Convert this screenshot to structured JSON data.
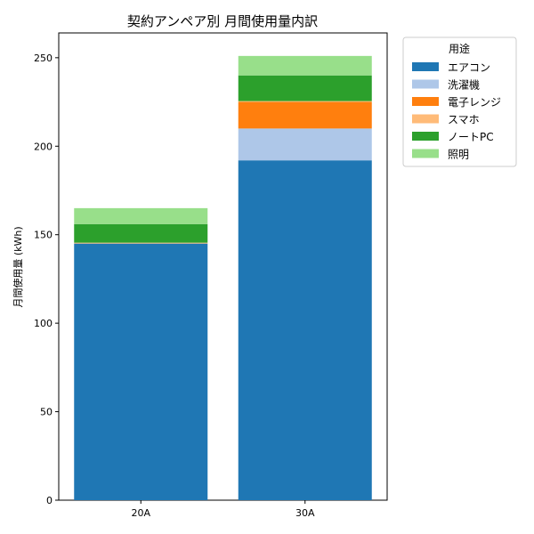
{
  "chart_data": {
    "type": "bar",
    "stacked": true,
    "title": "契約アンペア別 月間使用量内訳",
    "xlabel": "",
    "ylabel": "月間使用量 (kWh)",
    "categories": [
      "20A",
      "30A"
    ],
    "ylim": [
      0,
      264
    ],
    "yticks": [
      0,
      50,
      100,
      150,
      200,
      250
    ],
    "legend_title": "用途",
    "legend_position": "outside-top-right",
    "grid": false,
    "series": [
      {
        "name": "エアコン",
        "color": "#1f77b4",
        "values": [
          145,
          192
        ]
      },
      {
        "name": "洗濯機",
        "color": "#aec7e8",
        "values": [
          0,
          18
        ]
      },
      {
        "name": "電子レンジ",
        "color": "#ff7f0e",
        "values": [
          0,
          15
        ]
      },
      {
        "name": "スマホ",
        "color": "#ffbb78",
        "values": [
          0.5,
          0.5
        ]
      },
      {
        "name": "ノートPC",
        "color": "#2ca02c",
        "values": [
          10.5,
          14.5
        ]
      },
      {
        "name": "照明",
        "color": "#98df8a",
        "values": [
          9,
          11
        ]
      }
    ]
  }
}
